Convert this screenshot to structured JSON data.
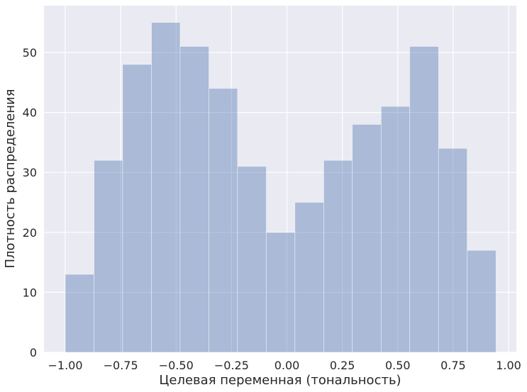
{
  "chart_data": {
    "type": "histogram",
    "xlabel": "Целевая переменная (тональность)",
    "ylabel": "Плотность распределения",
    "bins": [
      -1.0,
      -0.87,
      -0.741,
      -0.611,
      -0.482,
      -0.352,
      -0.223,
      -0.093,
      0.036,
      0.166,
      0.295,
      0.425,
      0.554,
      0.684,
      0.813,
      0.943
    ],
    "counts": [
      13,
      32,
      48,
      55,
      51,
      44,
      31,
      20,
      25,
      32,
      38,
      41,
      51,
      34,
      17
    ],
    "color": "#4c72b0",
    "alpha": 0.4,
    "grid": true,
    "xlim": [
      -1.096,
      1.035
    ],
    "xticks": [
      {
        "value": -1,
        "label": "−1.00"
      },
      {
        "value": -0.75,
        "label": "−0.75"
      },
      {
        "value": -0.5,
        "label": "−0.50"
      },
      {
        "value": -0.25,
        "label": "−0.25"
      },
      {
        "value": 0,
        "label": "0.00"
      },
      0.25,
      {
        "value": 0.5,
        "label": "0.50"
      },
      0.75,
      {
        "value": 1,
        "label": "1.00"
      }
    ],
    "ylim": [
      0,
      57.8
    ],
    "yticks": [
      0,
      10,
      20,
      30,
      40,
      50
    ]
  }
}
